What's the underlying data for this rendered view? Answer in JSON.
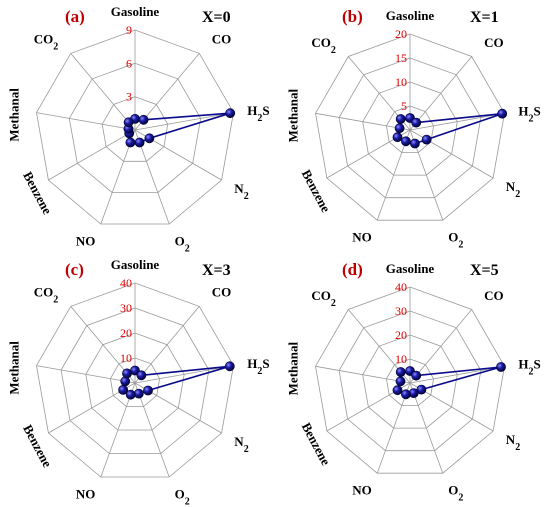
{
  "chart_data": [
    {
      "type": "radar",
      "panel_label": "(a)",
      "title": "X=0",
      "categories": [
        "Gasoline",
        "CO",
        "H2S",
        "N2",
        "O2",
        "NO",
        "Benzene",
        "Methanal",
        "CO2"
      ],
      "ticks": [
        "3",
        "6",
        "9"
      ],
      "rmax": 9,
      "values": [
        1.0,
        1.2,
        8.7,
        1.5,
        1.2,
        1.2,
        0.6,
        0.6,
        0.9
      ]
    },
    {
      "type": "radar",
      "panel_label": "(b)",
      "title": "X=1",
      "categories": [
        "Gasoline",
        "CO",
        "H2S",
        "N2",
        "O2",
        "NO",
        "Benzene",
        "Methanal",
        "CO2"
      ],
      "ticks": [
        "5",
        "10",
        "15",
        "20"
      ],
      "rmax": 20,
      "values": [
        2.5,
        2.0,
        19.5,
        4.0,
        3.0,
        2.5,
        3.0,
        2.2,
        3.0
      ]
    },
    {
      "type": "radar",
      "panel_label": "(c)",
      "title": "X=3",
      "categories": [
        "Gasoline",
        "CO",
        "H2S",
        "N2",
        "O2",
        "NO",
        "Benzene",
        "Methanal",
        "CO2"
      ],
      "ticks": [
        "10",
        "20",
        "30",
        "40"
      ],
      "rmax": 40,
      "values": [
        5.0,
        4.0,
        38.5,
        6.0,
        4.5,
        5.0,
        5.5,
        4.0,
        5.0
      ]
    },
    {
      "type": "radar",
      "panel_label": "(d)",
      "title": "X=5",
      "categories": [
        "Gasoline",
        "CO",
        "H2S",
        "N2",
        "O2",
        "NO",
        "Benzene",
        "Methanal",
        "CO2"
      ],
      "ticks": [
        "10",
        "20",
        "30",
        "40"
      ],
      "rmax": 40,
      "values": [
        5.0,
        4.0,
        38.5,
        5.5,
        4.5,
        5.0,
        6.0,
        4.0,
        6.0
      ]
    }
  ]
}
